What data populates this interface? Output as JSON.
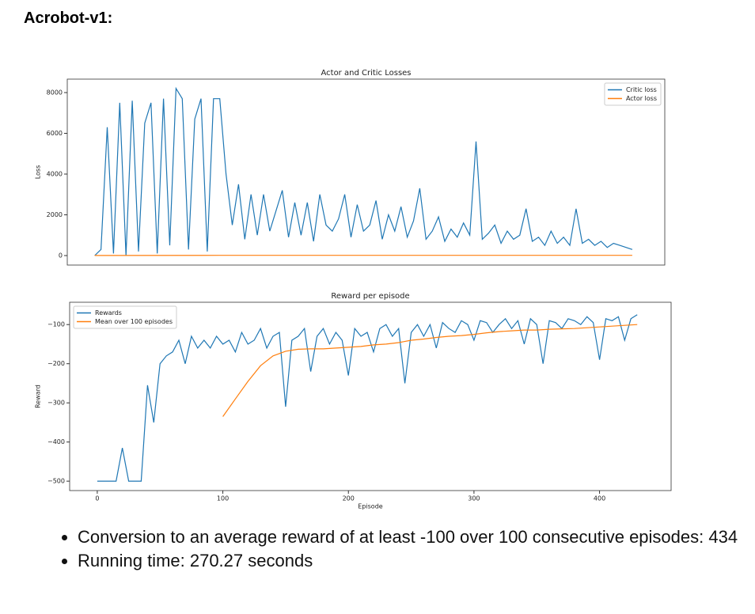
{
  "header": {
    "title": "Acrobot-v1:"
  },
  "chart_data": [
    {
      "type": "line",
      "title": "Actor and Critic Losses",
      "y_label": "Loss",
      "xlim": [
        -22,
        456
      ],
      "ylim": [
        -466,
        8660
      ],
      "yticks": [
        0,
        2000,
        4000,
        6000,
        8000
      ],
      "legend": "upper right",
      "grid": false,
      "series": [
        {
          "name": "Critic loss",
          "color": "#1f77b4",
          "x": [
            0,
            5,
            10,
            15,
            20,
            25,
            30,
            35,
            40,
            45,
            50,
            55,
            60,
            65,
            70,
            75,
            80,
            85,
            90,
            95,
            100,
            105,
            110,
            115,
            120,
            125,
            130,
            135,
            140,
            145,
            150,
            155,
            160,
            165,
            170,
            175,
            180,
            185,
            190,
            195,
            200,
            205,
            210,
            215,
            220,
            225,
            230,
            235,
            240,
            245,
            250,
            255,
            260,
            265,
            270,
            275,
            280,
            285,
            290,
            295,
            300,
            305,
            310,
            315,
            320,
            325,
            330,
            335,
            340,
            345,
            350,
            355,
            360,
            365,
            370,
            375,
            380,
            385,
            390,
            395,
            400,
            405,
            410,
            415,
            420,
            425,
            430
          ],
          "values": [
            0,
            300,
            6300,
            100,
            7500,
            0,
            7600,
            200,
            6500,
            7500,
            100,
            7700,
            500,
            8200,
            7700,
            300,
            6700,
            7700,
            200,
            7700,
            7700,
            4000,
            1500,
            3500,
            800,
            3000,
            1000,
            3000,
            1200,
            2200,
            3200,
            900,
            2600,
            1000,
            2600,
            700,
            3000,
            1500,
            1200,
            1800,
            3000,
            900,
            2500,
            1200,
            1500,
            2700,
            800,
            2000,
            1200,
            2400,
            900,
            1700,
            3300,
            800,
            1200,
            1900,
            700,
            1300,
            900,
            1600,
            1000,
            5600,
            800,
            1100,
            1500,
            600,
            1200,
            800,
            1000,
            2300,
            700,
            900,
            500,
            1200,
            600,
            900,
            500,
            2300,
            600,
            800,
            500,
            700,
            400,
            600,
            500,
            400,
            300
          ]
        },
        {
          "name": "Actor loss",
          "color": "#ff7f0e",
          "x": [
            0,
            100,
            200,
            300,
            430
          ],
          "values": [
            5,
            10,
            10,
            10,
            10
          ]
        }
      ]
    },
    {
      "type": "line",
      "title": "Reward per episode",
      "x_label": "Episode",
      "y_label": "Reward",
      "xlim": [
        -22,
        457
      ],
      "ylim": [
        -524,
        -43
      ],
      "xticks": [
        0,
        100,
        200,
        300,
        400
      ],
      "yticks": [
        {
          "value": -100,
          "label": "−100"
        },
        {
          "value": -200,
          "label": "−200"
        },
        {
          "value": -300,
          "label": "−300"
        },
        {
          "value": -400,
          "label": "−400"
        },
        {
          "value": -500,
          "label": "−500"
        }
      ],
      "legend": "upper left",
      "grid": false,
      "series": [
        {
          "name": "Rewards",
          "color": "#1f77b4",
          "x": [
            0,
            5,
            10,
            15,
            20,
            25,
            30,
            35,
            40,
            45,
            50,
            55,
            60,
            65,
            70,
            75,
            80,
            85,
            90,
            95,
            100,
            105,
            110,
            115,
            120,
            125,
            130,
            135,
            140,
            145,
            150,
            155,
            160,
            165,
            170,
            175,
            180,
            185,
            190,
            195,
            200,
            205,
            210,
            215,
            220,
            225,
            230,
            235,
            240,
            245,
            250,
            255,
            260,
            265,
            270,
            275,
            280,
            285,
            290,
            295,
            300,
            305,
            310,
            315,
            320,
            325,
            330,
            335,
            340,
            345,
            350,
            355,
            360,
            365,
            370,
            375,
            380,
            385,
            390,
            395,
            400,
            405,
            410,
            415,
            420,
            425,
            430
          ],
          "values": [
            -500,
            -500,
            -500,
            -500,
            -415,
            -500,
            -500,
            -500,
            -255,
            -350,
            -200,
            -180,
            -170,
            -140,
            -200,
            -130,
            -160,
            -140,
            -160,
            -130,
            -150,
            -140,
            -170,
            -120,
            -150,
            -140,
            -110,
            -160,
            -130,
            -120,
            -310,
            -140,
            -130,
            -110,
            -220,
            -130,
            -110,
            -150,
            -120,
            -140,
            -230,
            -110,
            -130,
            -120,
            -170,
            -110,
            -100,
            -130,
            -110,
            -250,
            -120,
            -100,
            -130,
            -100,
            -160,
            -95,
            -110,
            -120,
            -90,
            -100,
            -140,
            -90,
            -95,
            -120,
            -100,
            -85,
            -110,
            -90,
            -150,
            -85,
            -100,
            -200,
            -90,
            -95,
            -110,
            -85,
            -90,
            -100,
            -80,
            -95,
            -190,
            -85,
            -90,
            -80,
            -140,
            -85,
            -75
          ]
        },
        {
          "name": "Mean over 100 episodes",
          "color": "#ff7f0e",
          "x": [
            100,
            110,
            120,
            130,
            140,
            150,
            160,
            170,
            180,
            190,
            200,
            210,
            220,
            230,
            240,
            250,
            260,
            270,
            280,
            290,
            300,
            310,
            320,
            330,
            340,
            350,
            360,
            370,
            380,
            390,
            400,
            410,
            420,
            430
          ],
          "values": [
            -335,
            -290,
            -245,
            -205,
            -180,
            -168,
            -163,
            -162,
            -162,
            -160,
            -158,
            -156,
            -152,
            -150,
            -146,
            -140,
            -137,
            -133,
            -130,
            -128,
            -125,
            -121,
            -118,
            -116,
            -114,
            -114,
            -112,
            -111,
            -110,
            -108,
            -106,
            -104,
            -102,
            -100
          ]
        }
      ]
    }
  ],
  "bullets": [
    "Conversion to an average reward of at least -100 over 100 consecutive episodes: 434",
    "Running time: 270.27 seconds"
  ]
}
